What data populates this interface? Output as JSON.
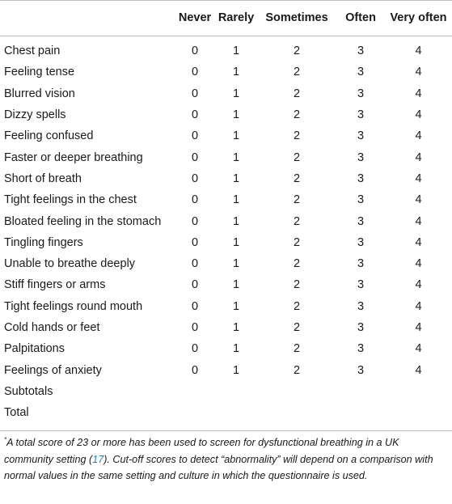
{
  "table": {
    "headers": [
      "",
      "Never",
      "Rarely",
      "Sometimes",
      "Often",
      "Very often"
    ],
    "rows": [
      {
        "label": "Chest pain",
        "values": [
          "0",
          "1",
          "2",
          "3",
          "4"
        ]
      },
      {
        "label": "Feeling tense",
        "values": [
          "0",
          "1",
          "2",
          "3",
          "4"
        ]
      },
      {
        "label": "Blurred vision",
        "values": [
          "0",
          "1",
          "2",
          "3",
          "4"
        ]
      },
      {
        "label": "Dizzy spells",
        "values": [
          "0",
          "1",
          "2",
          "3",
          "4"
        ]
      },
      {
        "label": "Feeling confused",
        "values": [
          "0",
          "1",
          "2",
          "3",
          "4"
        ]
      },
      {
        "label": "Faster or deeper breathing",
        "values": [
          "0",
          "1",
          "2",
          "3",
          "4"
        ]
      },
      {
        "label": "Short of breath",
        "values": [
          "0",
          "1",
          "2",
          "3",
          "4"
        ]
      },
      {
        "label": "Tight feelings in the chest",
        "values": [
          "0",
          "1",
          "2",
          "3",
          "4"
        ]
      },
      {
        "label": "Bloated feeling in the stomach",
        "values": [
          "0",
          "1",
          "2",
          "3",
          "4"
        ]
      },
      {
        "label": "Tingling fingers",
        "values": [
          "0",
          "1",
          "2",
          "3",
          "4"
        ]
      },
      {
        "label": "Unable to breathe deeply",
        "values": [
          "0",
          "1",
          "2",
          "3",
          "4"
        ]
      },
      {
        "label": "Stiff fingers or arms",
        "values": [
          "0",
          "1",
          "2",
          "3",
          "4"
        ]
      },
      {
        "label": "Tight feelings round mouth",
        "values": [
          "0",
          "1",
          "2",
          "3",
          "4"
        ]
      },
      {
        "label": "Cold hands or feet",
        "values": [
          "0",
          "1",
          "2",
          "3",
          "4"
        ]
      },
      {
        "label": "Palpitations",
        "values": [
          "0",
          "1",
          "2",
          "3",
          "4"
        ]
      },
      {
        "label": "Feelings of anxiety",
        "values": [
          "0",
          "1",
          "2",
          "3",
          "4"
        ]
      },
      {
        "label": "Subtotals",
        "values": [
          "",
          "",
          "",
          "",
          ""
        ]
      },
      {
        "label": "Total",
        "values": [
          "",
          "",
          "",
          "",
          ""
        ]
      }
    ]
  },
  "footnote": {
    "marker": "*",
    "text_before": "A total score of 23 or more has been used to screen for dysfunctional breathing in a UK community setting (",
    "ref": "17",
    "text_after": "). Cut-off scores to detect “abnormality” will depend on a comparison with normal values in the same setting and culture in which the questionnaire is used."
  },
  "colors": {
    "rule": "#bdbdbd",
    "text": "#1a1a1a",
    "link": "#2a7db5"
  }
}
